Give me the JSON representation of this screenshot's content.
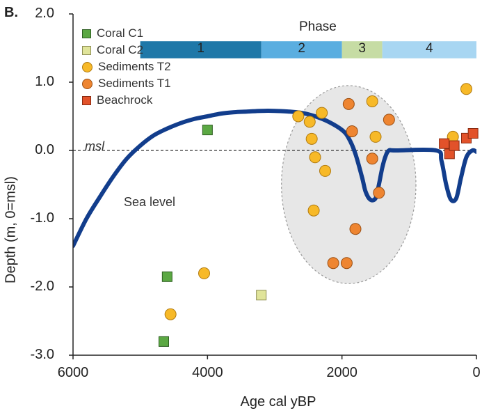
{
  "panel_label": "B.",
  "chart_data": {
    "type": "scatter",
    "title": "",
    "xlabel": "Age cal yBP",
    "ylabel": "Depth (m, 0=msl)",
    "xlim": [
      6000,
      0
    ],
    "ylim": [
      -3.0,
      2.0
    ],
    "x_ticks": [
      "6000",
      "4000",
      "2000",
      "0"
    ],
    "x_tick_values": [
      6000,
      4000,
      2000,
      0
    ],
    "y_ticks": [
      "2.0",
      "1.0",
      "0.0",
      "-1.0",
      "-2.0",
      "-3.0"
    ],
    "y_tick_values": [
      2.0,
      1.0,
      0.0,
      -1.0,
      -2.0,
      -3.0
    ],
    "legend_position": "top-left",
    "msl_label": "msl",
    "sea_level_label": "Sea level",
    "sea_level_color": "#123d8c",
    "sea_level_curve": [
      [
        6000,
        -1.4
      ],
      [
        5800,
        -1.0
      ],
      [
        5600,
        -0.68
      ],
      [
        5400,
        -0.38
      ],
      [
        5200,
        -0.12
      ],
      [
        5000,
        0.07
      ],
      [
        4800,
        0.22
      ],
      [
        4600,
        0.32
      ],
      [
        4400,
        0.4
      ],
      [
        4200,
        0.46
      ],
      [
        4000,
        0.5
      ],
      [
        3800,
        0.54
      ],
      [
        3600,
        0.56
      ],
      [
        3400,
        0.57
      ],
      [
        3200,
        0.58
      ],
      [
        3000,
        0.58
      ],
      [
        2800,
        0.57
      ],
      [
        2600,
        0.55
      ],
      [
        2400,
        0.5
      ],
      [
        2200,
        0.42
      ],
      [
        2000,
        0.3
      ],
      [
        1900,
        0.18
      ],
      [
        1800,
        -0.05
      ],
      [
        1700,
        -0.4
      ],
      [
        1650,
        -0.6
      ],
      [
        1580,
        -0.72
      ],
      [
        1500,
        -0.7
      ],
      [
        1450,
        -0.5
      ],
      [
        1400,
        -0.25
      ],
      [
        1350,
        -0.08
      ],
      [
        1300,
        0.0
      ],
      [
        1200,
        0.0
      ],
      [
        600,
        0.0
      ],
      [
        520,
        -0.15
      ],
      [
        450,
        -0.5
      ],
      [
        380,
        -0.72
      ],
      [
        300,
        -0.7
      ],
      [
        230,
        -0.4
      ],
      [
        150,
        -0.1
      ],
      [
        60,
        0.0
      ],
      [
        0,
        -0.02
      ]
    ],
    "cluster_ellipse": {
      "cx": 1900,
      "cy": -0.5,
      "rx": 1000,
      "ry": 1.45
    },
    "series": [
      {
        "name": "Coral C1",
        "marker": "square",
        "color": "#5ba843",
        "edge": "#2e5e22",
        "points": [
          [
            4000,
            0.3
          ],
          [
            4600,
            -1.85
          ],
          [
            4650,
            -2.8
          ]
        ]
      },
      {
        "name": "Coral C2",
        "marker": "square",
        "color": "#e0e49a",
        "edge": "#8f8f55",
        "points": [
          [
            3200,
            -2.12
          ]
        ]
      },
      {
        "name": "Sediments T2",
        "marker": "circle",
        "color": "#f7b928",
        "edge": "#b07a10",
        "points": [
          [
            4050,
            -1.8
          ],
          [
            4550,
            -2.4
          ],
          [
            2650,
            0.5
          ],
          [
            2480,
            0.42
          ],
          [
            2450,
            0.17
          ],
          [
            2400,
            -0.1
          ],
          [
            2300,
            0.55
          ],
          [
            2250,
            -0.3
          ],
          [
            2420,
            -0.88
          ],
          [
            1550,
            0.72
          ],
          [
            1500,
            0.2
          ],
          [
            350,
            0.2
          ],
          [
            150,
            0.9
          ]
        ]
      },
      {
        "name": "Sediments T1",
        "marker": "circle",
        "color": "#ee8531",
        "edge": "#9a4e12",
        "points": [
          [
            1900,
            0.68
          ],
          [
            1850,
            0.28
          ],
          [
            1800,
            -1.15
          ],
          [
            1550,
            -0.12
          ],
          [
            1450,
            -0.62
          ],
          [
            1300,
            0.45
          ],
          [
            2130,
            -1.65
          ],
          [
            1930,
            -1.65
          ]
        ]
      },
      {
        "name": "Beachrock",
        "marker": "square",
        "color": "#e2522a",
        "edge": "#8a2a10",
        "points": [
          [
            480,
            0.1
          ],
          [
            400,
            -0.05
          ],
          [
            330,
            0.07
          ],
          [
            150,
            0.18
          ],
          [
            50,
            0.25
          ]
        ]
      }
    ],
    "phases": {
      "title": "Phase",
      "bands": [
        {
          "label": "1",
          "from": 5000,
          "to": 3200,
          "color": "#1f78a8"
        },
        {
          "label": "2",
          "from": 3200,
          "to": 2000,
          "color": "#5aaee0"
        },
        {
          "label": "3",
          "from": 2000,
          "to": 1400,
          "color": "#c6dca4"
        },
        {
          "label": "4",
          "from": 1400,
          "to": 0,
          "color": "#a8d6f2"
        }
      ]
    }
  }
}
